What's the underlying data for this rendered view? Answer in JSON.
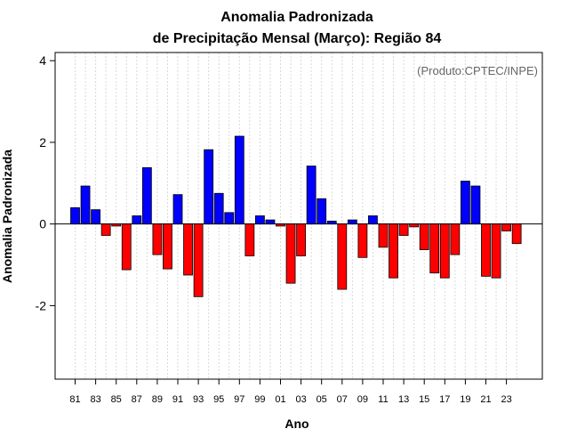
{
  "chart_data": {
    "type": "bar",
    "title": "Anomalia Padronizada",
    "subtitle": "de Precipitação Mensal (Março): Região 84",
    "xlabel": "Ano",
    "ylabel": "Anomalia Padronizada",
    "credit": "(Produto:CPTEC/INPE)",
    "ylim": [
      -3.8,
      4.2
    ],
    "yticks": [
      -2,
      0,
      2,
      4
    ],
    "ytick_labels": [
      "-2",
      "0",
      "2",
      "4"
    ],
    "categories": [
      "81",
      "82",
      "83",
      "84",
      "85",
      "86",
      "87",
      "88",
      "89",
      "90",
      "91",
      "92",
      "93",
      "94",
      "95",
      "96",
      "97",
      "98",
      "99",
      "00",
      "01",
      "02",
      "03",
      "04",
      "05",
      "06",
      "07",
      "08",
      "09",
      "10",
      "11",
      "12",
      "13",
      "14",
      "15",
      "16",
      "17",
      "18",
      "19",
      "20",
      "21",
      "22",
      "23",
      "24"
    ],
    "xtick_labels": [
      "81",
      "83",
      "85",
      "87",
      "89",
      "91",
      "93",
      "95",
      "97",
      "99",
      "01",
      "03",
      "05",
      "07",
      "09",
      "11",
      "13",
      "15",
      "17",
      "19",
      "21",
      "23"
    ],
    "values": [
      0.4,
      0.93,
      0.35,
      -0.28,
      -0.05,
      -1.12,
      0.2,
      1.38,
      -0.75,
      -1.1,
      0.72,
      -1.25,
      -1.78,
      1.82,
      0.75,
      0.28,
      2.15,
      -0.78,
      0.2,
      0.1,
      -0.05,
      -1.45,
      -0.78,
      1.42,
      0.62,
      0.07,
      -1.6,
      0.1,
      -0.82,
      0.2,
      -0.57,
      -1.32,
      -0.28,
      -0.07,
      -0.63,
      -1.2,
      -1.32,
      -0.75,
      1.05,
      0.93,
      -1.28,
      -1.32,
      -0.17,
      -0.48
    ],
    "grid": true,
    "colors": {
      "positive": "#0000ff",
      "negative": "#ff0000",
      "grid": "#d9d9d9",
      "axis": "#000000"
    }
  }
}
